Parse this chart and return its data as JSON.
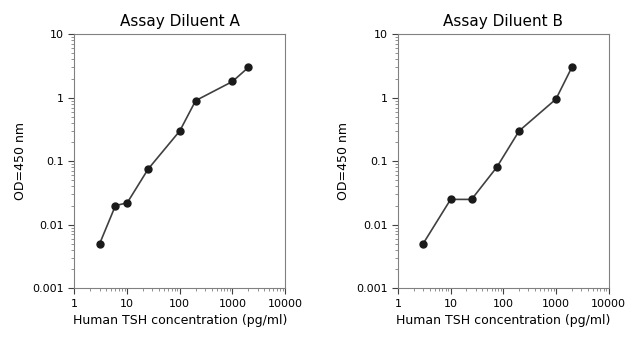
{
  "panel_A": {
    "title": "Assay Diluent A",
    "x": [
      3,
      6,
      10,
      25,
      100,
      200,
      1000,
      2000
    ],
    "y": [
      0.005,
      0.02,
      0.022,
      0.075,
      0.3,
      0.9,
      1.8,
      3.0
    ],
    "xlabel": "Human TSH concentration (pg/ml)",
    "ylabel": "OD=450 nm",
    "xlim": [
      1,
      10000
    ],
    "ylim": [
      0.001,
      10
    ]
  },
  "panel_B": {
    "title": "Assay Diluent B",
    "x": [
      3,
      10,
      25,
      75,
      200,
      1000,
      2000
    ],
    "y": [
      0.005,
      0.025,
      0.025,
      0.08,
      0.3,
      0.95,
      3.0
    ],
    "xlabel": "Human TSH concentration (pg/ml)",
    "ylabel": "OD=450 nm",
    "xlim": [
      1,
      10000
    ],
    "ylim": [
      0.001,
      10
    ]
  },
  "line_color": "#404040",
  "marker_color": "#1a1a1a",
  "bg_color": "#ffffff",
  "xticks": [
    1,
    10,
    100,
    1000,
    10000
  ],
  "xtick_labels": [
    "1",
    "10",
    "100",
    "1000",
    "10000"
  ],
  "yticks": [
    0.001,
    0.01,
    0.1,
    1,
    10
  ],
  "ytick_labels": [
    "0.001",
    "0.01",
    "0.1",
    "1",
    "10"
  ]
}
